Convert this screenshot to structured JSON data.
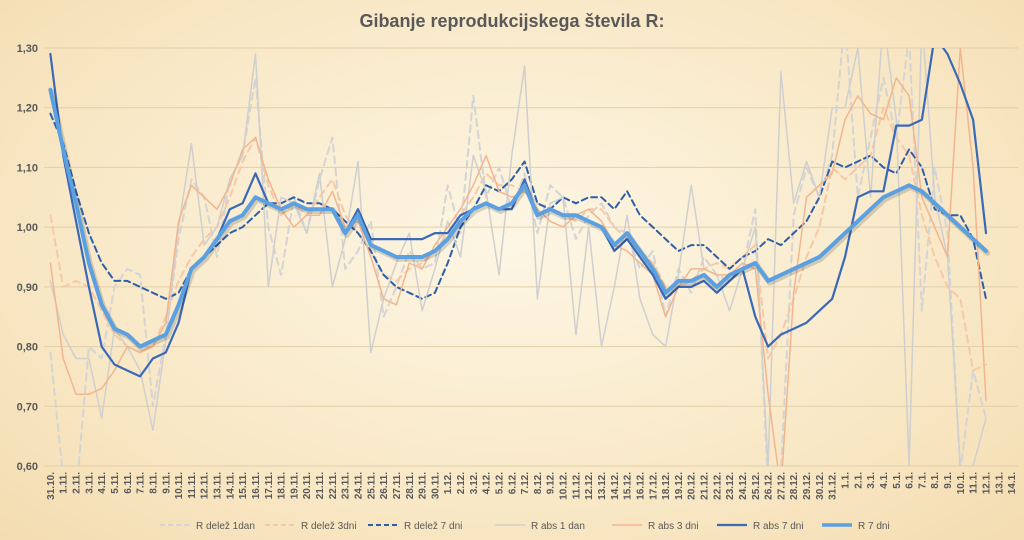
{
  "chart_data": {
    "type": "line",
    "title": "Gibanje reprodukcijskega števila R:",
    "xlabel": "",
    "ylabel": "",
    "ylim": [
      0.6,
      1.3
    ],
    "yticks": [
      "0,60",
      "0,70",
      "0,80",
      "0,90",
      "1,00",
      "1,10",
      "1,20",
      "1,30"
    ],
    "grid": true,
    "legend_position": "bottom",
    "categories": [
      "31.10.",
      "1.11.",
      "2.11.",
      "3.11.",
      "4.11.",
      "5.11.",
      "6.11.",
      "7.11.",
      "8.11.",
      "9.11.",
      "10.11.",
      "11.11.",
      "12.11.",
      "13.11.",
      "14.11.",
      "15.11.",
      "16.11.",
      "17.11.",
      "18.11.",
      "19.11.",
      "20.11.",
      "21.11.",
      "22.11.",
      "23.11.",
      "24.11.",
      "25.11.",
      "26.11.",
      "27.11.",
      "28.11.",
      "29.11.",
      "30.11.",
      "1.12.",
      "2.12.",
      "3.12.",
      "4.12.",
      "5.12.",
      "6.12.",
      "7.12.",
      "8.12.",
      "9.12.",
      "10.12.",
      "11.12.",
      "12.12.",
      "13.12.",
      "14.12.",
      "15.12.",
      "16.12.",
      "17.12.",
      "18.12.",
      "19.12.",
      "20.12.",
      "21.12.",
      "22.12.",
      "23.12.",
      "24.12.",
      "25.12.",
      "26.12.",
      "27.12.",
      "28.12.",
      "29.12.",
      "30.12.",
      "31.12.",
      "1.1.",
      "2.1.",
      "3.1.",
      "4.1.",
      "5.1.",
      "6.1.",
      "7.1.",
      "8.1.",
      "9.1.",
      "10.1.",
      "11.1.",
      "12.1.",
      "13.1.",
      "14.1."
    ],
    "series": [
      {
        "name": "R delež 1dan",
        "color": "#d4d4d4",
        "width": 2,
        "dash": "7,5",
        "values": [
          0.79,
          0.58,
          0.55,
          0.8,
          0.78,
          0.9,
          0.93,
          0.92,
          0.7,
          0.82,
          0.98,
          1.08,
          1.05,
          0.95,
          1.08,
          1.12,
          1.25,
          1.0,
          0.92,
          1.05,
          0.99,
          1.08,
          1.15,
          0.93,
          0.96,
          1.01,
          0.85,
          0.9,
          0.96,
          0.93,
          0.94,
          1.07,
          0.99,
          1.22,
          1.05,
          1.1,
          1.03,
          1.09,
          0.99,
          1.07,
          1.05,
          0.98,
          1.02,
          1.04,
          1.0,
          0.99,
          0.93,
          0.96,
          0.85,
          0.93,
          0.89,
          0.95,
          0.92,
          0.91,
          0.93,
          1.03,
          0.56,
          0.59,
          1.02,
          1.1,
          1.05,
          1.12,
          1.35,
          1.05,
          1.15,
          1.25,
          1.15,
          1.32,
          0.86,
          1.1,
          0.99,
          0.59,
          0.76,
          0.68,
          null,
          null
        ]
      },
      {
        "name": "R delež 3dni",
        "color": "#f6c9a6",
        "width": 2,
        "dash": "7,5",
        "values": [
          1.02,
          0.9,
          0.91,
          0.9,
          0.86,
          0.82,
          0.8,
          0.79,
          0.8,
          0.85,
          0.91,
          0.95,
          0.98,
          1.0,
          1.05,
          1.11,
          1.15,
          1.07,
          1.02,
          1.04,
          1.02,
          1.05,
          1.08,
          1.02,
          0.99,
          0.96,
          0.92,
          0.91,
          0.93,
          0.94,
          0.96,
          0.99,
          1.02,
          1.05,
          1.09,
          1.07,
          1.07,
          1.06,
          1.04,
          1.03,
          1.02,
          1.01,
          1.03,
          1.03,
          1.0,
          0.98,
          0.96,
          0.94,
          0.9,
          0.9,
          0.91,
          0.93,
          0.94,
          0.93,
          0.95,
          0.97,
          0.78,
          0.82,
          0.88,
          0.95,
          1.0,
          1.1,
          1.08,
          1.1,
          1.12,
          1.2,
          1.15,
          1.12,
          1.02,
          0.95,
          0.9,
          0.88,
          0.76,
          0.77,
          null,
          null
        ]
      },
      {
        "name": "R delež 7 dni",
        "color": "#2f5ea8",
        "width": 2,
        "dash": "6,4",
        "values": [
          1.19,
          1.14,
          1.06,
          0.99,
          0.94,
          0.91,
          0.91,
          0.9,
          0.89,
          0.88,
          0.89,
          0.93,
          0.95,
          0.97,
          0.99,
          1.0,
          1.02,
          1.04,
          1.04,
          1.05,
          1.04,
          1.04,
          1.03,
          1.01,
          0.99,
          0.96,
          0.92,
          0.9,
          0.89,
          0.88,
          0.89,
          0.94,
          1.0,
          1.03,
          1.07,
          1.06,
          1.08,
          1.11,
          1.04,
          1.03,
          1.05,
          1.04,
          1.05,
          1.05,
          1.03,
          1.06,
          1.02,
          1.0,
          0.98,
          0.96,
          0.97,
          0.97,
          0.95,
          0.93,
          0.95,
          0.96,
          0.98,
          0.97,
          0.99,
          1.01,
          1.05,
          1.11,
          1.1,
          1.11,
          1.12,
          1.1,
          1.09,
          1.13,
          1.1,
          1.03,
          1.02,
          1.02,
          0.98,
          0.88,
          null,
          null
        ]
      },
      {
        "name": "R abs 1 dan",
        "color": "#cfcfcf",
        "width": 1.5,
        "dash": "",
        "values": [
          0.91,
          0.82,
          0.78,
          0.78,
          0.68,
          0.83,
          0.8,
          0.76,
          0.66,
          0.81,
          1.0,
          1.14,
          0.97,
          1.0,
          1.08,
          1.12,
          1.29,
          0.9,
          1.05,
          1.04,
          0.99,
          1.09,
          0.9,
          0.98,
          1.11,
          0.79,
          0.88,
          0.94,
          0.99,
          0.86,
          0.93,
          1.01,
          0.95,
          1.12,
          1.06,
          0.92,
          1.12,
          1.27,
          0.88,
          1.04,
          1.05,
          0.82,
          1.0,
          0.8,
          0.9,
          1.02,
          0.88,
          0.82,
          0.8,
          0.92,
          1.07,
          0.93,
          0.92,
          0.86,
          0.93,
          1.0,
          0.6,
          1.26,
          1.04,
          1.11,
          1.05,
          1.2,
          1.2,
          1.3,
          1.05,
          1.35,
          1.18,
          0.6,
          1.35,
          1.05,
          0.95,
          0.6,
          0.6,
          0.68,
          null,
          null
        ]
      },
      {
        "name": "R abs 3 dni",
        "color": "#f3b58e",
        "width": 1.5,
        "dash": "",
        "values": [
          0.94,
          0.78,
          0.72,
          0.72,
          0.73,
          0.76,
          0.8,
          0.79,
          0.8,
          0.84,
          1.01,
          1.07,
          1.05,
          1.03,
          1.07,
          1.13,
          1.15,
          1.08,
          1.03,
          1.0,
          1.02,
          1.02,
          1.06,
          1.0,
          1.01,
          0.95,
          0.88,
          0.87,
          0.94,
          0.93,
          0.97,
          1.0,
          1.03,
          1.07,
          1.12,
          1.06,
          1.05,
          1.06,
          1.03,
          1.01,
          1.0,
          1.02,
          1.03,
          1.01,
          0.97,
          0.96,
          0.94,
          0.92,
          0.85,
          0.9,
          0.93,
          0.93,
          0.92,
          0.92,
          0.94,
          0.93,
          0.72,
          0.56,
          0.89,
          1.05,
          1.07,
          1.09,
          1.18,
          1.22,
          1.19,
          1.18,
          1.25,
          1.22,
          1.05,
          1.0,
          0.95,
          1.3,
          1.1,
          0.71,
          null,
          null
        ]
      },
      {
        "name": "R abs 7 dni",
        "color": "#3a69b8",
        "width": 2.2,
        "dash": "",
        "values": [
          1.29,
          1.12,
          1.01,
          0.9,
          0.8,
          0.77,
          0.76,
          0.75,
          0.78,
          0.79,
          0.84,
          0.93,
          0.95,
          0.98,
          1.03,
          1.04,
          1.09,
          1.04,
          1.03,
          1.04,
          1.03,
          1.03,
          1.03,
          0.99,
          1.03,
          0.98,
          0.98,
          0.98,
          0.98,
          0.98,
          0.99,
          0.99,
          1.02,
          1.03,
          1.04,
          1.03,
          1.03,
          1.08,
          1.02,
          1.03,
          1.02,
          1.02,
          1.01,
          1.0,
          0.96,
          0.98,
          0.95,
          0.92,
          0.88,
          0.9,
          0.9,
          0.91,
          0.89,
          0.91,
          0.93,
          0.85,
          0.8,
          0.82,
          0.83,
          0.84,
          0.86,
          0.88,
          0.95,
          1.05,
          1.06,
          1.06,
          1.17,
          1.17,
          1.18,
          1.32,
          1.29,
          1.24,
          1.18,
          0.99,
          null,
          null
        ]
      },
      {
        "name": "R 7 dni",
        "color": "#5ba0e0",
        "width": 4,
        "dash": "",
        "values": [
          1.23,
          1.13,
          1.04,
          0.94,
          0.87,
          0.83,
          0.82,
          0.8,
          0.81,
          0.82,
          0.87,
          0.93,
          0.95,
          0.98,
          1.01,
          1.02,
          1.05,
          1.04,
          1.03,
          1.04,
          1.03,
          1.03,
          1.03,
          0.99,
          1.02,
          0.97,
          0.96,
          0.95,
          0.95,
          0.95,
          0.96,
          0.98,
          1.01,
          1.03,
          1.04,
          1.03,
          1.04,
          1.07,
          1.02,
          1.03,
          1.02,
          1.02,
          1.01,
          1.0,
          0.97,
          0.99,
          0.96,
          0.93,
          0.89,
          0.91,
          0.91,
          0.92,
          0.9,
          0.92,
          0.93,
          0.94,
          0.91,
          0.92,
          0.93,
          0.94,
          0.95,
          0.97,
          0.99,
          1.01,
          1.03,
          1.05,
          1.06,
          1.07,
          1.06,
          1.04,
          1.02,
          1.0,
          0.98,
          0.96,
          null,
          null
        ]
      }
    ]
  }
}
